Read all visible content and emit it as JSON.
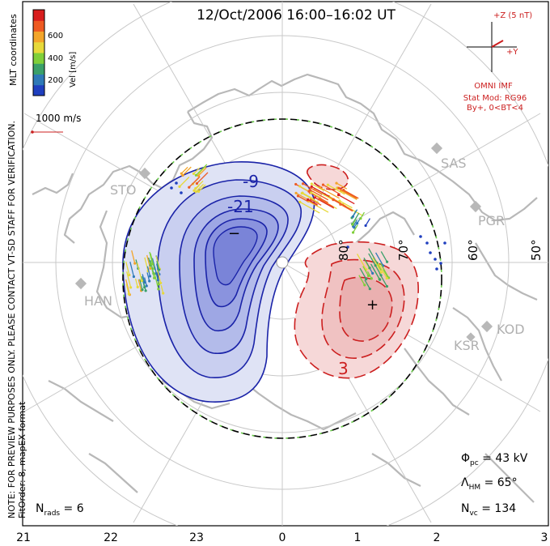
{
  "title": "12/Oct/2006 16:00–16:02 UT",
  "side_note": "NOTE: FOR PREVIEW PURPOSES ONLY. PLEASE CONTACT VT-SD STAFF FOR VERIFICATION.",
  "fit_note": "FitOrder: 8, mapEX format",
  "coords_label": "MLT coordinates",
  "colorbar": {
    "label": "Vel [m/s]",
    "ticks": [
      "600",
      "400",
      "200"
    ],
    "colors": [
      "#1f3fbf",
      "#2e79b7",
      "#3aa06a",
      "#7fcf3a",
      "#e7d93a",
      "#f3a52a",
      "#ee5a22",
      "#d81d1d"
    ]
  },
  "scale_label": "1000 m/s",
  "imf": {
    "z_label": "+Z (5 nT)",
    "y_label": "+Y",
    "source": "OMNI IMF",
    "model": "Stat Mod: RG96",
    "condition": "By+, 0<BT<4"
  },
  "stations": [
    "STO",
    "HAN",
    "SAS",
    "PGR",
    "KOD",
    "KSR"
  ],
  "latitude_labels": [
    "80°",
    "70°",
    "60°",
    "50°"
  ],
  "contours": {
    "neg_labels": [
      "-9",
      "-21"
    ],
    "pos_label": "3",
    "min_marker": "−",
    "max_marker": "+",
    "neg_color": "#1a23a8",
    "pos_color": "#cc1f1f"
  },
  "stats": {
    "phi_pc": "43 kV",
    "lambda_hm": "65°",
    "n_vc": "134",
    "n_rads": "6"
  },
  "mlt_axis": [
    "21",
    "22",
    "23",
    "0",
    "1",
    "2",
    "3"
  ]
}
